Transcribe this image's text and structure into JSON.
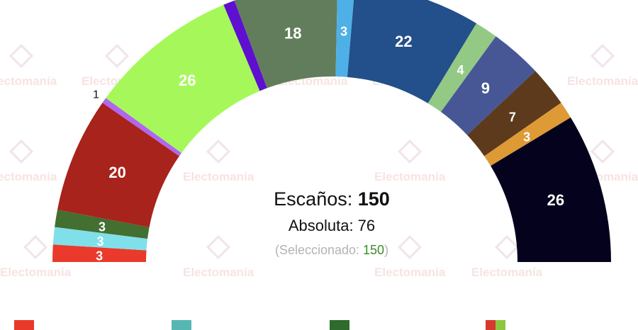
{
  "watermark": "Electomanía",
  "summary": {
    "seats_label": "Escaños:",
    "seats_total": "150",
    "majority_label": "Absoluta: 76",
    "selected_open": "(Seleccionado: ",
    "selected_value": "150",
    "selected_close": ")",
    "selected_color": "#3b8a2a"
  },
  "legend_swatches": [
    {
      "colors": [
        "#e8392b"
      ]
    },
    {
      "colors": [
        "#56b6b4"
      ]
    },
    {
      "colors": [
        "#2e6b2c"
      ]
    },
    {
      "colors": [
        "#d63a2f",
        "#8dc63f"
      ]
    }
  ],
  "chart_data": {
    "type": "parliament-hemicycle",
    "total": 150,
    "majority": 76,
    "series": [
      {
        "seats": 3,
        "color": "#ea3a2b",
        "label": "3"
      },
      {
        "seats": 3,
        "color": "#80e0ea",
        "label": "3"
      },
      {
        "seats": 3,
        "color": "#436f31",
        "label": "3"
      },
      {
        "seats": 20,
        "color": "#a8231b",
        "label": "20"
      },
      {
        "seats": 1,
        "color": "#b066ee",
        "label": "1",
        "label_outside": true
      },
      {
        "seats": 26,
        "color": "#a6f85a",
        "label": "26"
      },
      {
        "seats": 2,
        "color": "#5e0fcf",
        "label": ""
      },
      {
        "seats": 18,
        "color": "#627d5c",
        "label": "18"
      },
      {
        "seats": 3,
        "color": "#4eb0e6",
        "label": "3"
      },
      {
        "seats": 22,
        "color": "#234f8a",
        "label": "22"
      },
      {
        "seats": 4,
        "color": "#93c985",
        "label": "4"
      },
      {
        "seats": 9,
        "color": "#475796",
        "label": "9"
      },
      {
        "seats": 7,
        "color": "#5c3a1b",
        "label": "7"
      },
      {
        "seats": 3,
        "color": "#de9a35",
        "label": "3"
      },
      {
        "seats": 26,
        "color": "#04021c",
        "label": "26"
      }
    ]
  }
}
